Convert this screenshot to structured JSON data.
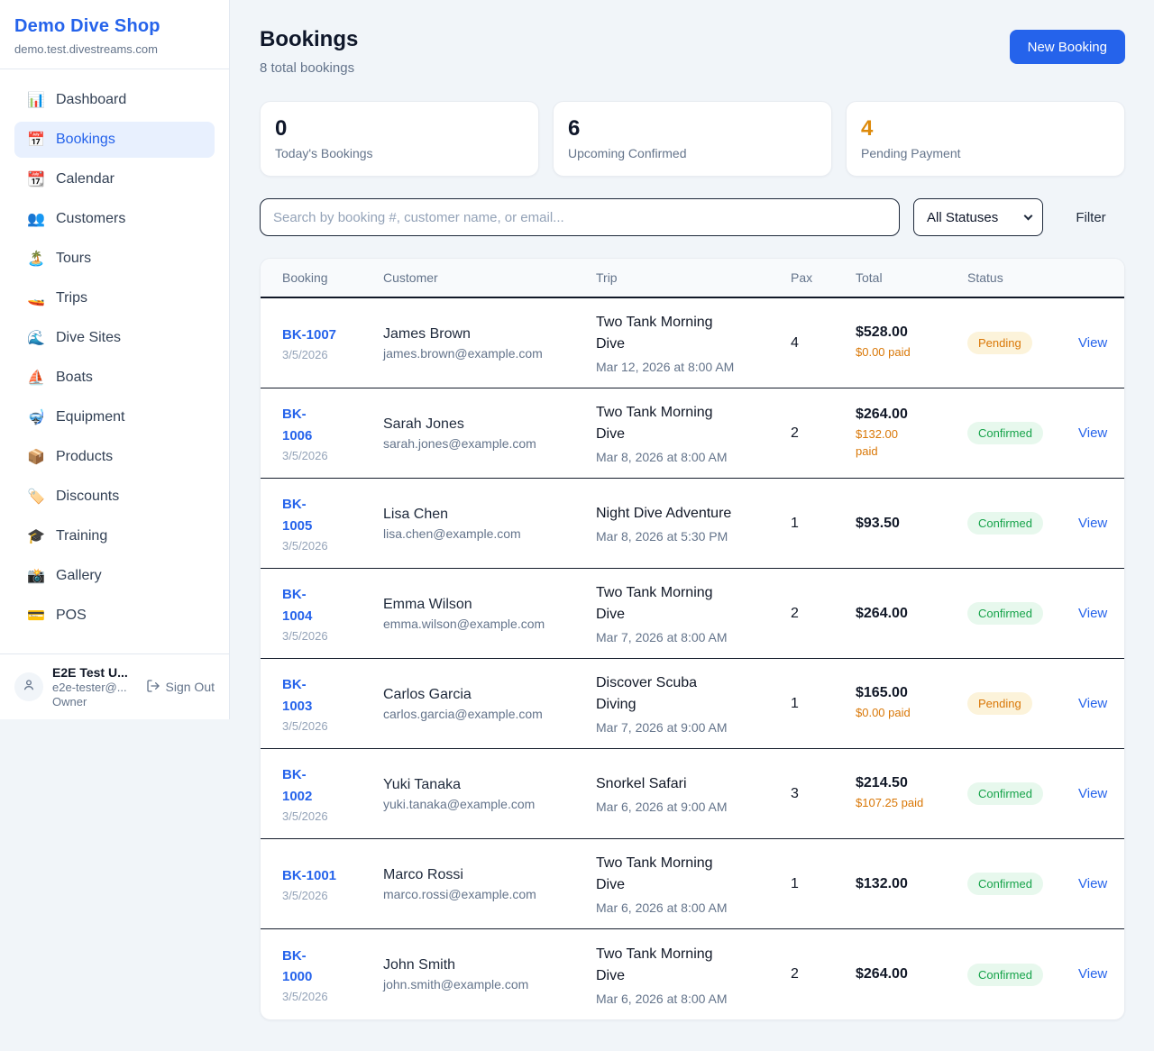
{
  "app": {
    "name": "Demo Dive Shop",
    "domain": "demo.test.divestreams.com"
  },
  "colors": {
    "accent_blue": "#2563eb",
    "pending_orange": "#d97706",
    "confirmed_green": "#16a34a",
    "pending_badge_bg": "#fcf3da",
    "confirmed_badge_bg": "#e7f8ed",
    "page_background": "#f1f5f9"
  },
  "sidebar": {
    "items": [
      {
        "label": "Dashboard",
        "icon": "bar-chart",
        "glyph": "📊",
        "active": false
      },
      {
        "label": "Bookings",
        "icon": "calendar-date",
        "glyph": "📅",
        "active": true
      },
      {
        "label": "Calendar",
        "icon": "calendar",
        "glyph": "📆",
        "active": false
      },
      {
        "label": "Customers",
        "icon": "users",
        "glyph": "👥",
        "active": false
      },
      {
        "label": "Tours",
        "icon": "island",
        "glyph": "🏝️",
        "active": false
      },
      {
        "label": "Trips",
        "icon": "speedboat",
        "glyph": "🚤",
        "active": false
      },
      {
        "label": "Dive Sites",
        "icon": "wave",
        "glyph": "🌊",
        "active": false
      },
      {
        "label": "Boats",
        "icon": "sailboat",
        "glyph": "⛵",
        "active": false
      },
      {
        "label": "Equipment",
        "icon": "diving-mask",
        "glyph": "🤿",
        "active": false
      },
      {
        "label": "Products",
        "icon": "package",
        "glyph": "📦",
        "active": false
      },
      {
        "label": "Discounts",
        "icon": "price-tag",
        "glyph": "🏷️",
        "active": false
      },
      {
        "label": "Training",
        "icon": "graduation-cap",
        "glyph": "🎓",
        "active": false
      },
      {
        "label": "Gallery",
        "icon": "camera-flash",
        "glyph": "📸",
        "active": false
      },
      {
        "label": "POS",
        "icon": "credit-card",
        "glyph": "💳",
        "active": false
      }
    ],
    "user": {
      "name": "E2E Test U...",
      "email": "e2e-tester@...",
      "role": "Owner",
      "sign_out_label": "Sign Out"
    }
  },
  "header": {
    "title": "Bookings",
    "subtitle": "8 total bookings",
    "new_booking_label": "New Booking"
  },
  "stats": [
    {
      "value": "0",
      "label": "Today's Bookings",
      "accent": "dark"
    },
    {
      "value": "6",
      "label": "Upcoming Confirmed",
      "accent": "dark"
    },
    {
      "value": "4",
      "label": "Pending Payment",
      "accent": "orange"
    }
  ],
  "filters": {
    "search_placeholder": "Search by booking #, customer name, or email...",
    "status_selected": "All Statuses",
    "filter_label": "Filter"
  },
  "table": {
    "columns": [
      "Booking",
      "Customer",
      "Trip",
      "Pax",
      "Total",
      "Status"
    ],
    "rows": [
      {
        "id": "BK-1007",
        "date": "3/5/2026",
        "customer": "James Brown",
        "email": "james.brown@example.com",
        "trip": "Two Tank Morning\nDive",
        "trip_datetime": "Mar 12, 2026 at 8:00 AM",
        "pax": "4",
        "total": "$528.00",
        "paid": "$0.00 paid",
        "status": "Pending",
        "action": "View"
      },
      {
        "id": "BK-\n1006",
        "date": "3/5/2026",
        "customer": "Sarah Jones",
        "email": "sarah.jones@example.com",
        "trip": "Two Tank Morning\nDive",
        "trip_datetime": "Mar 8, 2026 at 8:00 AM",
        "pax": "2",
        "total": "$264.00",
        "paid": "$132.00\npaid",
        "status": "Confirmed",
        "action": "View"
      },
      {
        "id": "BK-\n1005",
        "date": "3/5/2026",
        "customer": "Lisa Chen",
        "email": "lisa.chen@example.com",
        "trip": "Night Dive Adventure",
        "trip_datetime": "Mar 8, 2026 at 5:30 PM",
        "pax": "1",
        "total": "$93.50",
        "paid": "",
        "status": "Confirmed",
        "action": "View"
      },
      {
        "id": "BK-\n1004",
        "date": "3/5/2026",
        "customer": "Emma Wilson",
        "email": "emma.wilson@example.com",
        "trip": "Two Tank Morning\nDive",
        "trip_datetime": "Mar 7, 2026 at 8:00 AM",
        "pax": "2",
        "total": "$264.00",
        "paid": "",
        "status": "Confirmed",
        "action": "View"
      },
      {
        "id": "BK-\n1003",
        "date": "3/5/2026",
        "customer": "Carlos Garcia",
        "email": "carlos.garcia@example.com",
        "trip": "Discover Scuba\nDiving",
        "trip_datetime": "Mar 7, 2026 at 9:00 AM",
        "pax": "1",
        "total": "$165.00",
        "paid": "$0.00 paid",
        "status": "Pending",
        "action": "View"
      },
      {
        "id": "BK-\n1002",
        "date": "3/5/2026",
        "customer": "Yuki Tanaka",
        "email": "yuki.tanaka@example.com",
        "trip": "Snorkel Safari",
        "trip_datetime": "Mar 6, 2026 at 9:00 AM",
        "pax": "3",
        "total": "$214.50",
        "paid": "$107.25 paid",
        "status": "Confirmed",
        "action": "View"
      },
      {
        "id": "BK-1001",
        "date": "3/5/2026",
        "customer": "Marco Rossi",
        "email": "marco.rossi@example.com",
        "trip": "Two Tank Morning\nDive",
        "trip_datetime": "Mar 6, 2026 at 8:00 AM",
        "pax": "1",
        "total": "$132.00",
        "paid": "",
        "status": "Confirmed",
        "action": "View"
      },
      {
        "id": "BK-\n1000",
        "date": "3/5/2026",
        "customer": "John Smith",
        "email": "john.smith@example.com",
        "trip": "Two Tank Morning\nDive",
        "trip_datetime": "Mar 6, 2026 at 8:00 AM",
        "pax": "2",
        "total": "$264.00",
        "paid": "",
        "status": "Confirmed",
        "action": "View"
      }
    ]
  }
}
